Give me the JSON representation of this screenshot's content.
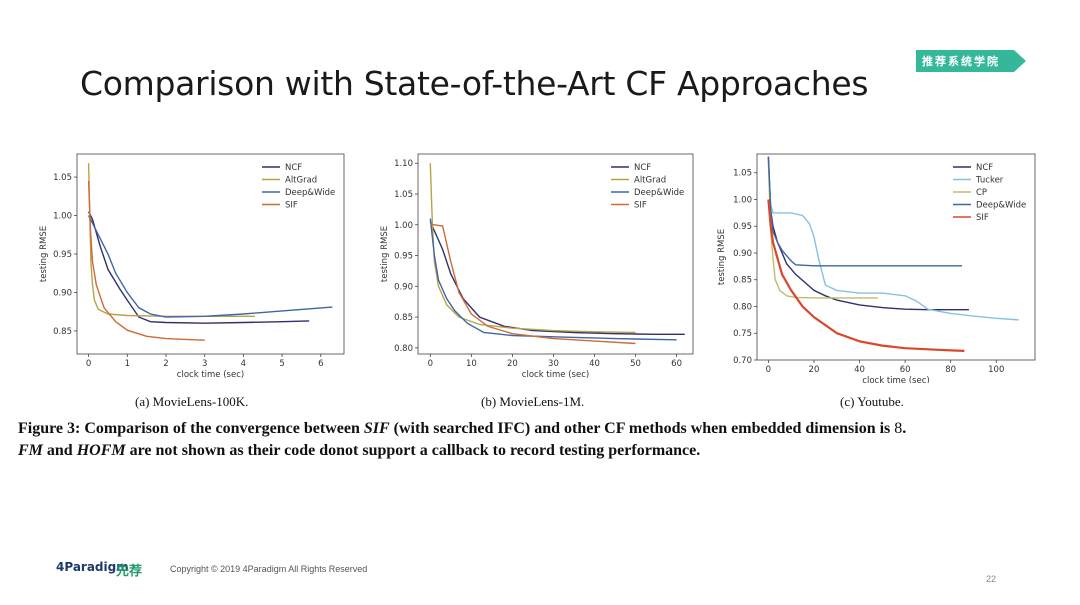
{
  "slide": {
    "title": "Comparison with State-of-the-Art CF Approaches",
    "badge": "推荐系统学院",
    "footer": {
      "paradigm_logo": "4Paradigm",
      "xianjian_logo": "先荐",
      "copyright": "Copyright © 2019 4Paradigm All Rights Reserved",
      "page_number": "22"
    },
    "figure_caption_parts": {
      "p1": "Figure 3: Comparison of the convergence between ",
      "p2": "SIF",
      "p3": " (with searched IFC) and other CF methods when embedded dimension is ",
      "p4": "8",
      "p5": ".",
      "p6": "FM",
      "p7": " and ",
      "p8": "HOFM",
      "p9": " are not shown as their code donot support a callback to record testing performance."
    }
  },
  "colors": {
    "NCF": "#31306e",
    "AltGrad": "#b7a347",
    "Deep&Wide": "#3f66a6",
    "SIF": "#cd6a36",
    "SIF_c": "#d8482c",
    "Tucker": "#86c2df",
    "CP": "#c2bb6d",
    "badge": "#35b89a"
  },
  "chart_data": [
    {
      "type": "line",
      "subcaption": "(a)  MovieLens-100K.",
      "xlabel": "clock time (sec)",
      "ylabel": "testing RMSE",
      "xlim": [
        -0.3,
        6.6
      ],
      "ylim": [
        0.82,
        1.08
      ],
      "xticks": [
        0,
        1,
        2,
        3,
        4,
        5,
        6
      ],
      "yticks": [
        0.85,
        0.9,
        0.95,
        1.0,
        1.05
      ],
      "ytick_labels": [
        "0.85",
        "0.90",
        "0.95",
        "1.00",
        "1.05"
      ],
      "legend": [
        "NCF",
        "AltGrad",
        "Deep&Wide",
        "SIF"
      ],
      "legend_position": "top-right",
      "series": [
        {
          "name": "NCF",
          "color_key": "NCF",
          "x": [
            0.0,
            0.1,
            0.3,
            0.5,
            0.8,
            1.0,
            1.3,
            1.6,
            2.0,
            3.0,
            4.0,
            5.0,
            5.7
          ],
          "y": [
            1.005,
            0.995,
            0.96,
            0.93,
            0.905,
            0.89,
            0.868,
            0.862,
            0.861,
            0.86,
            0.861,
            0.862,
            0.863
          ]
        },
        {
          "name": "AltGrad",
          "color_key": "AltGrad",
          "x": [
            0.0,
            0.03,
            0.06,
            0.1,
            0.15,
            0.25,
            0.5,
            1.0,
            2.0,
            3.0,
            4.3
          ],
          "y": [
            1.068,
            1.0,
            0.94,
            0.91,
            0.89,
            0.878,
            0.872,
            0.87,
            0.869,
            0.869,
            0.869
          ]
        },
        {
          "name": "Deep&Wide",
          "color_key": "Deep&Wide",
          "x": [
            0.0,
            0.1,
            0.3,
            0.5,
            0.7,
            1.0,
            1.3,
            1.6,
            2.0,
            3.0,
            4.0,
            5.0,
            6.3
          ],
          "y": [
            1.0,
            0.99,
            0.97,
            0.95,
            0.925,
            0.9,
            0.88,
            0.872,
            0.868,
            0.869,
            0.872,
            0.876,
            0.881
          ]
        },
        {
          "name": "SIF",
          "color_key": "SIF",
          "x": [
            0.0,
            0.05,
            0.1,
            0.2,
            0.4,
            0.7,
            1.0,
            1.5,
            2.0,
            2.5,
            3.0
          ],
          "y": [
            1.045,
            0.98,
            0.94,
            0.91,
            0.88,
            0.862,
            0.851,
            0.843,
            0.84,
            0.839,
            0.838
          ]
        }
      ]
    },
    {
      "type": "line",
      "subcaption": "(b)  MovieLens-1M.",
      "xlabel": "clock time (sec)",
      "ylabel": "testing RMSE",
      "xlim": [
        -3,
        64
      ],
      "ylim": [
        0.79,
        1.115
      ],
      "xticks": [
        0,
        10,
        20,
        30,
        40,
        50,
        60
      ],
      "yticks": [
        0.8,
        0.85,
        0.9,
        0.95,
        1.0,
        1.05,
        1.1
      ],
      "ytick_labels": [
        "0.80",
        "0.85",
        "0.90",
        "0.95",
        "1.00",
        "1.05",
        "1.10"
      ],
      "legend": [
        "NCF",
        "AltGrad",
        "Deep&Wide",
        "SIF"
      ],
      "legend_position": "top-right",
      "series": [
        {
          "name": "NCF",
          "color_key": "NCF",
          "x": [
            0,
            1,
            3,
            5,
            8,
            12,
            18,
            25,
            35,
            45,
            55,
            62
          ],
          "y": [
            1.005,
            0.99,
            0.96,
            0.92,
            0.88,
            0.85,
            0.835,
            0.828,
            0.825,
            0.823,
            0.822,
            0.822
          ]
        },
        {
          "name": "AltGrad",
          "color_key": "AltGrad",
          "x": [
            0,
            0.5,
            1,
            2,
            4,
            7,
            12,
            20,
            30,
            40,
            50
          ],
          "y": [
            1.1,
            1.0,
            0.94,
            0.9,
            0.87,
            0.85,
            0.838,
            0.832,
            0.828,
            0.826,
            0.825
          ]
        },
        {
          "name": "Deep&Wide",
          "color_key": "Deep&Wide",
          "x": [
            0,
            1,
            2,
            4,
            6,
            9,
            13,
            20,
            30,
            45,
            60
          ],
          "y": [
            1.01,
            0.95,
            0.91,
            0.88,
            0.86,
            0.84,
            0.825,
            0.82,
            0.818,
            0.815,
            0.813
          ]
        },
        {
          "name": "SIF",
          "color_key": "SIF",
          "x": [
            0,
            1,
            3,
            5,
            7,
            10,
            14,
            20,
            30,
            40,
            50
          ],
          "y": [
            1.0,
            1.0,
            0.998,
            0.94,
            0.89,
            0.855,
            0.835,
            0.823,
            0.815,
            0.811,
            0.807
          ]
        }
      ]
    },
    {
      "type": "line",
      "subcaption": "(c)  Youtube.",
      "xlabel": "clock time (sec)",
      "ylabel": "testing RMSE",
      "xlim": [
        -5,
        117
      ],
      "ylim": [
        0.7,
        1.085
      ],
      "xticks": [
        0,
        20,
        40,
        60,
        80,
        100
      ],
      "yticks": [
        0.7,
        0.75,
        0.8,
        0.85,
        0.9,
        0.95,
        1.0,
        1.05
      ],
      "ytick_labels": [
        "0.70",
        "0.75",
        "0.80",
        "0.85",
        "0.90",
        "0.95",
        "1.00",
        "1.05"
      ],
      "legend": [
        "NCF",
        "Tucker",
        "CP",
        "Deep&Wide",
        "SIF"
      ],
      "legend_position": "top-right",
      "series": [
        {
          "name": "NCF",
          "color_key": "NCF",
          "x": [
            0,
            1,
            2,
            4,
            6,
            8,
            12,
            16,
            20,
            25,
            30,
            40,
            50,
            60,
            70,
            80,
            88
          ],
          "y": [
            1.08,
            0.98,
            0.95,
            0.92,
            0.9,
            0.88,
            0.86,
            0.845,
            0.83,
            0.82,
            0.812,
            0.803,
            0.798,
            0.795,
            0.794,
            0.794,
            0.794
          ]
        },
        {
          "name": "Tucker",
          "color_key": "Tucker",
          "x": [
            0,
            1,
            2,
            5,
            10,
            15,
            18,
            20,
            22,
            25,
            30,
            40,
            50,
            60,
            65,
            70,
            80,
            90,
            100,
            110
          ],
          "y": [
            1.07,
            0.99,
            0.975,
            0.975,
            0.975,
            0.97,
            0.955,
            0.93,
            0.89,
            0.84,
            0.83,
            0.825,
            0.825,
            0.82,
            0.81,
            0.795,
            0.787,
            0.782,
            0.778,
            0.775
          ]
        },
        {
          "name": "CP",
          "color_key": "CP",
          "x": [
            0,
            1,
            2,
            3,
            5,
            8,
            12,
            20,
            30,
            40,
            48
          ],
          "y": [
            1.07,
            0.94,
            0.89,
            0.85,
            0.83,
            0.82,
            0.817,
            0.816,
            0.816,
            0.816,
            0.816
          ]
        },
        {
          "name": "Deep&Wide",
          "color_key": "Deep&Wide",
          "x": [
            0,
            1,
            2,
            4,
            6,
            8,
            10,
            12,
            20,
            30,
            50,
            70,
            85
          ],
          "y": [
            1.08,
            0.98,
            0.94,
            0.92,
            0.905,
            0.895,
            0.885,
            0.878,
            0.876,
            0.876,
            0.876,
            0.876,
            0.876
          ]
        },
        {
          "name": "SIF",
          "color_key": "SIF_c",
          "x": [
            0,
            1,
            2,
            4,
            6,
            10,
            15,
            20,
            30,
            40,
            50,
            60,
            70,
            80,
            86
          ],
          "y": [
            1.0,
            0.95,
            0.92,
            0.89,
            0.86,
            0.83,
            0.8,
            0.78,
            0.75,
            0.735,
            0.727,
            0.722,
            0.72,
            0.718,
            0.717
          ]
        }
      ]
    }
  ]
}
